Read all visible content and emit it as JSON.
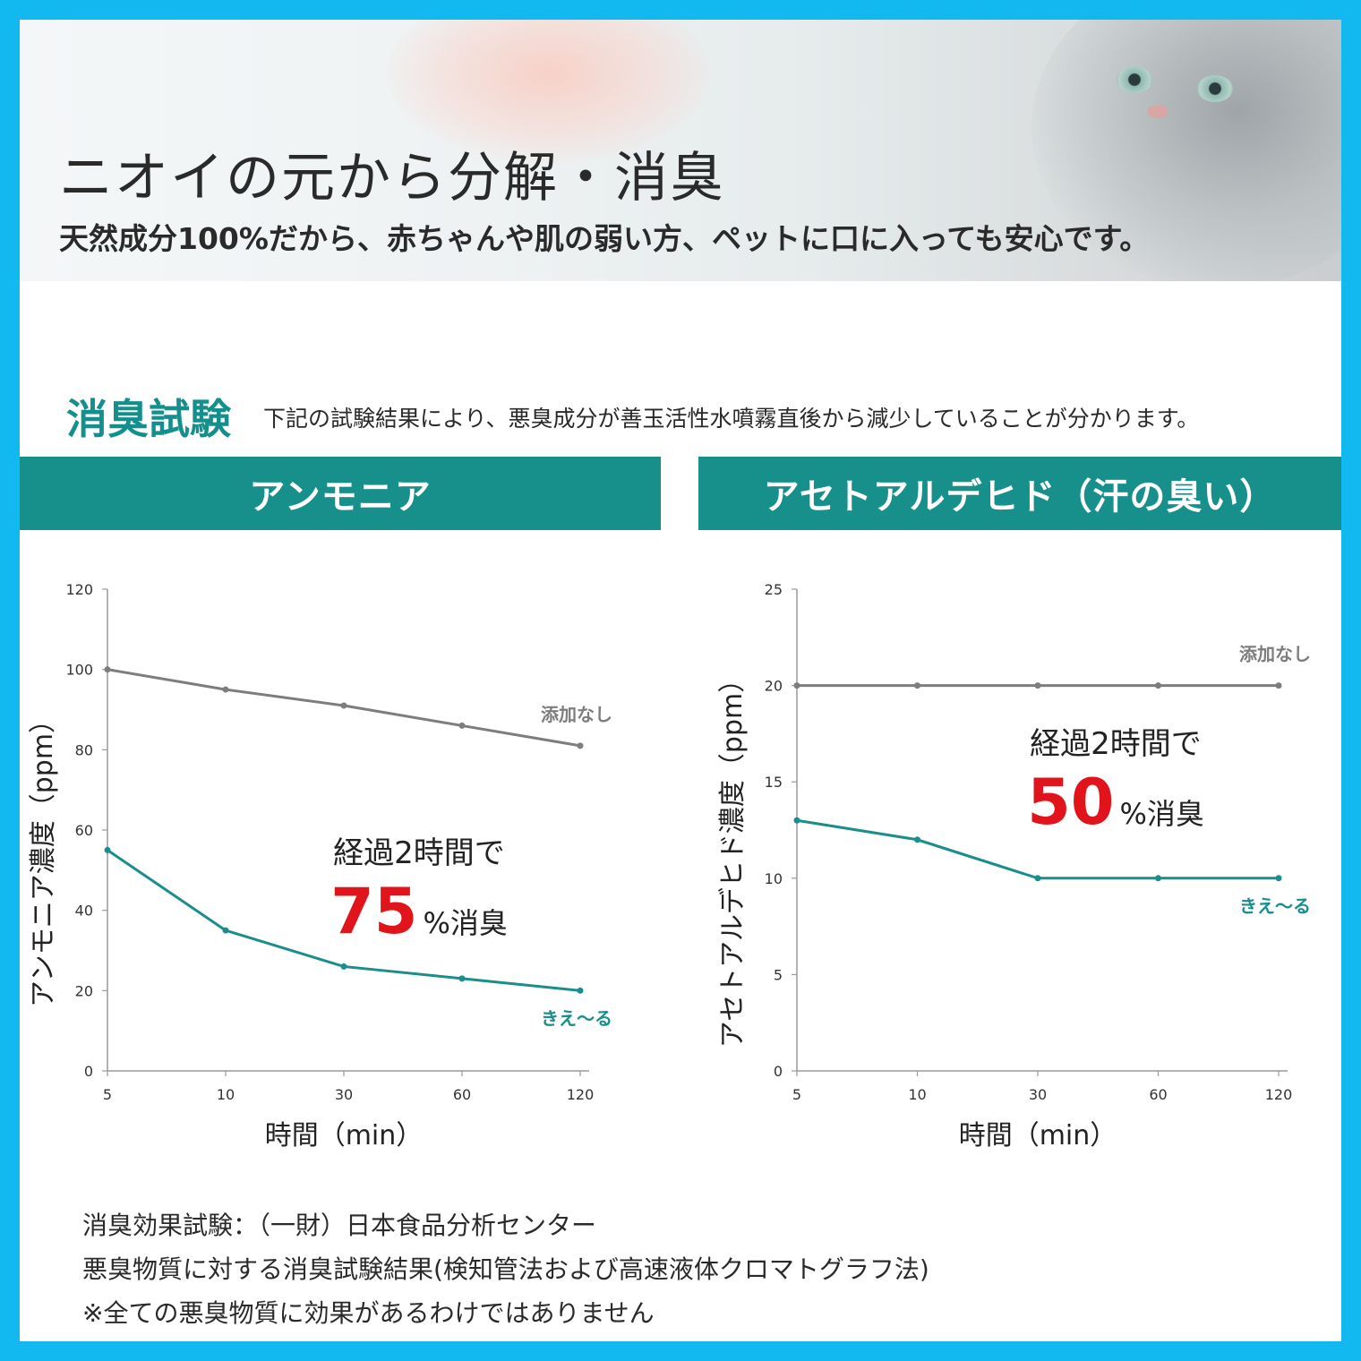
{
  "hero": {
    "title": "ニオイの元から分解・消臭",
    "subtitle": "天然成分100%だから、赤ちゃんや肌の弱い方、ペットに口に入っても安心です。"
  },
  "test": {
    "heading": "消臭試験",
    "description": "下記の試験結果により、悪臭成分が善玉活性水噴霧直後から減少していることが分かります。"
  },
  "colors": {
    "frame": "#12b8f0",
    "teal": "#178f8b",
    "gray_line": "#7d7d7d",
    "teal_line": "#1a8e8c",
    "highlight_red": "#e0141a"
  },
  "chart_data": [
    {
      "type": "line",
      "title": "アンモニア",
      "xlabel": "時間（min）",
      "ylabel": "アンモニア濃度（ppm）",
      "categories": [
        "5",
        "10",
        "30",
        "60",
        "120"
      ],
      "ylim": [
        0,
        120
      ],
      "yticks": [
        "0",
        "20",
        "40",
        "60",
        "80",
        "100",
        "120"
      ],
      "series": [
        {
          "name": "添加なし",
          "values": [
            100,
            95,
            91,
            86,
            81
          ]
        },
        {
          "name": "きえ〜る",
          "values": [
            55,
            35,
            26,
            23,
            20
          ]
        }
      ],
      "annotation": {
        "line1": "経過2時間で",
        "percent": "75",
        "suffix": "%消臭"
      }
    },
    {
      "type": "line",
      "title": "アセトアルデヒド（汗の臭い）",
      "xlabel": "時間（min）",
      "ylabel": "アセトアルデヒド濃度（ppm）",
      "categories": [
        "5",
        "10",
        "30",
        "60",
        "120"
      ],
      "ylim": [
        0,
        25
      ],
      "yticks": [
        "0",
        "5",
        "10",
        "15",
        "20",
        "25"
      ],
      "series": [
        {
          "name": "添加なし",
          "values": [
            20,
            20,
            20,
            20,
            20
          ]
        },
        {
          "name": "きえ〜る",
          "values": [
            13,
            12,
            10,
            10,
            10
          ]
        }
      ],
      "annotation": {
        "line1": "経過2時間で",
        "percent": "50",
        "suffix": "%消臭"
      }
    }
  ],
  "footnotes": [
    "消臭効果試験：（一財）日本食品分析センター",
    "悪臭物質に対する消臭試験結果(検知管法および高速液体クロマトグラフ法)",
    "※全ての悪臭物質に効果があるわけではありません"
  ]
}
